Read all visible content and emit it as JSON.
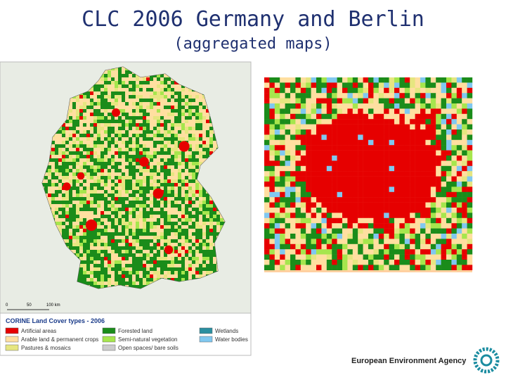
{
  "header": {
    "title": "CLC 2006 Germany and Berlin",
    "subtitle": "(aggregated maps)"
  },
  "germany_map": {
    "scale_labels": [
      "0",
      "50",
      "100 km"
    ],
    "legend": {
      "title": "CORINE Land Cover types - 2006",
      "items": [
        {
          "label": "Artificial areas",
          "color": "#e60000"
        },
        {
          "label": "Arable land & permanent crops",
          "color": "#ffdfa0"
        },
        {
          "label": "Pastures & mosaics",
          "color": "#e6e680"
        },
        {
          "label": "Forested land",
          "color": "#1a8c1a"
        },
        {
          "label": "Semi-natural vegetation",
          "color": "#a6e64d"
        },
        {
          "label": "Open spaces/ bare soils",
          "color": "#cccccc"
        },
        {
          "label": "Wetlands",
          "color": "#2a8fa0"
        },
        {
          "label": "Water bodies",
          "color": "#80c8f0"
        }
      ]
    }
  },
  "footer": {
    "agency": "European Environment Agency"
  }
}
